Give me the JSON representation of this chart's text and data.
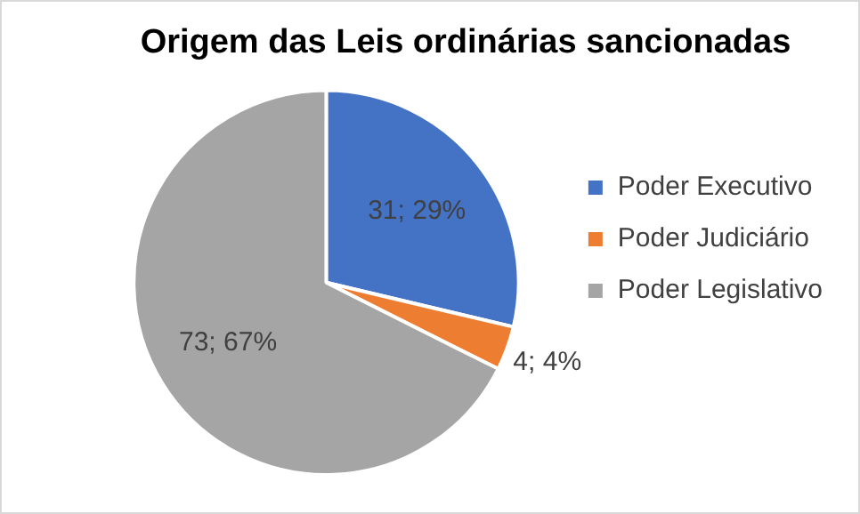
{
  "chart_data": {
    "type": "pie",
    "title": "Origem das Leis ordinárias sancionadas",
    "categories": [
      "Poder Executivo",
      "Poder Judiciário",
      "Poder Legislativo"
    ],
    "values": [
      31,
      4,
      73
    ],
    "colors": [
      "#4472c4",
      "#ed7d31",
      "#a5a5a5"
    ],
    "value_labels": [
      "31; 29%",
      "4; 4%",
      "73; 67%"
    ],
    "legend": "right"
  }
}
